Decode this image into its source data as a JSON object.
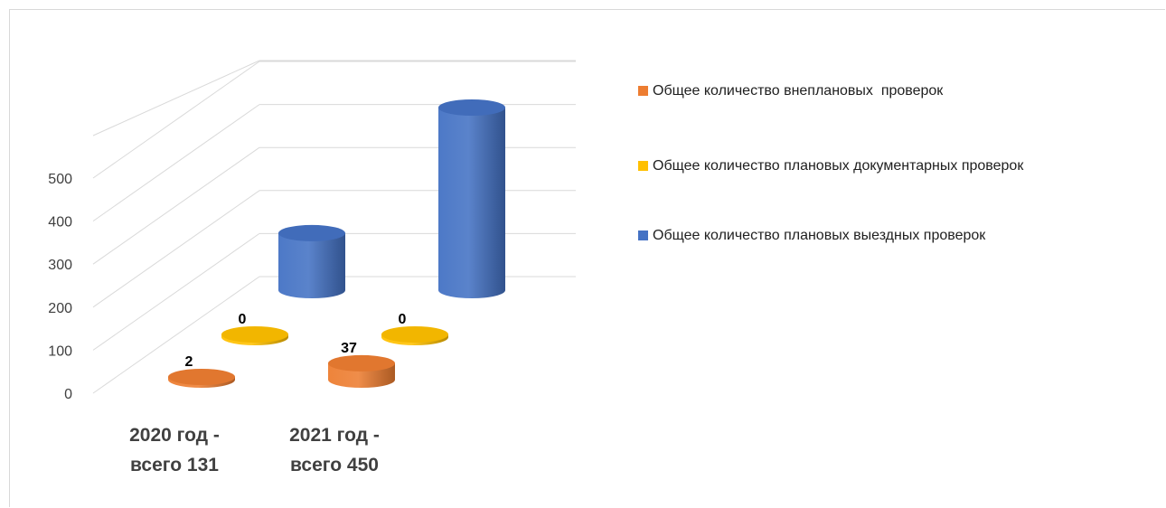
{
  "chart_data": {
    "type": "bar",
    "subtype": "3d-cylinder",
    "title": "",
    "categories": [
      "2020 год -\nвсего 131",
      "2021 год -\nвсего 450"
    ],
    "series": [
      {
        "name": "Общее количество внеплановых  проверок",
        "values": [
          2,
          37
        ],
        "color": "#ED7D31",
        "labels": [
          "2",
          "37"
        ]
      },
      {
        "name": "Общее количество плановых документарных проверок",
        "values": [
          0,
          0
        ],
        "color": "#FFC000",
        "labels": [
          "0",
          "0"
        ]
      },
      {
        "name": "Общее количество плановых выездных проверок",
        "values": [
          129,
          413
        ],
        "color": "#4472C4",
        "labels": [
          "",
          ""
        ]
      }
    ],
    "yticks": [
      "0",
      "100",
      "200",
      "300",
      "400",
      "500"
    ],
    "ylim": [
      0,
      500
    ],
    "grid": true,
    "legend_position": "right"
  }
}
